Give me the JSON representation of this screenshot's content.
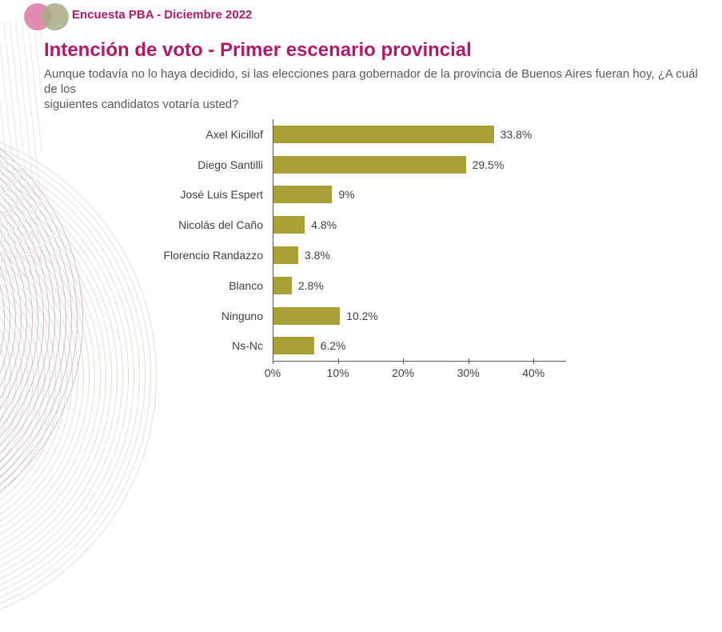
{
  "header": {
    "brand": "Encuesta PBA - Diciembre 2022"
  },
  "logo": {
    "left_circle_color": "#e18bb5",
    "right_circle_color": "#a8ac84"
  },
  "page": {
    "title": "Intención de voto - Primer escenario provincial",
    "subtitle_lines": [
      "Aunque todavía no lo haya decidido, si las elecciones para gobernador de la provincia de Buenos Aires fueran hoy, ¿A cuál de los",
      "siguientes candidatos votaría usted?"
    ]
  },
  "colors": {
    "accent": "#b2176b",
    "bar": "#a9a137",
    "axis": "#595959",
    "text": "#3f3f3f",
    "subtitle_text": "#595959"
  },
  "chart_data": {
    "type": "bar",
    "orientation": "horizontal",
    "title": "Intención de voto - Primer escenario provincial",
    "categories": [
      "Axel Kicillof",
      "Diego Santilli",
      "José Luis Espert",
      "Nicolás del Caño",
      "Florencio Randazzo",
      "Blanco",
      "Ninguno",
      "Ns-Nc"
    ],
    "values": [
      33.8,
      29.5,
      9,
      4.8,
      3.8,
      2.8,
      10.2,
      6.2
    ],
    "value_labels": [
      "33.8%",
      "29.5%",
      "9%",
      "4.8%",
      "3.8%",
      "2.8%",
      "10.2%",
      "6.2%"
    ],
    "xticks": [
      {
        "value": 0,
        "label": "0%"
      },
      {
        "value": 10,
        "label": "10%"
      },
      {
        "value": 20,
        "label": "20%"
      },
      {
        "value": 30,
        "label": "30%"
      },
      {
        "value": 40,
        "label": "40%"
      }
    ],
    "xlim": [
      0,
      45
    ],
    "grid": false,
    "legend": false,
    "bar_color": "#a9a137",
    "xlabel": "",
    "ylabel": ""
  }
}
